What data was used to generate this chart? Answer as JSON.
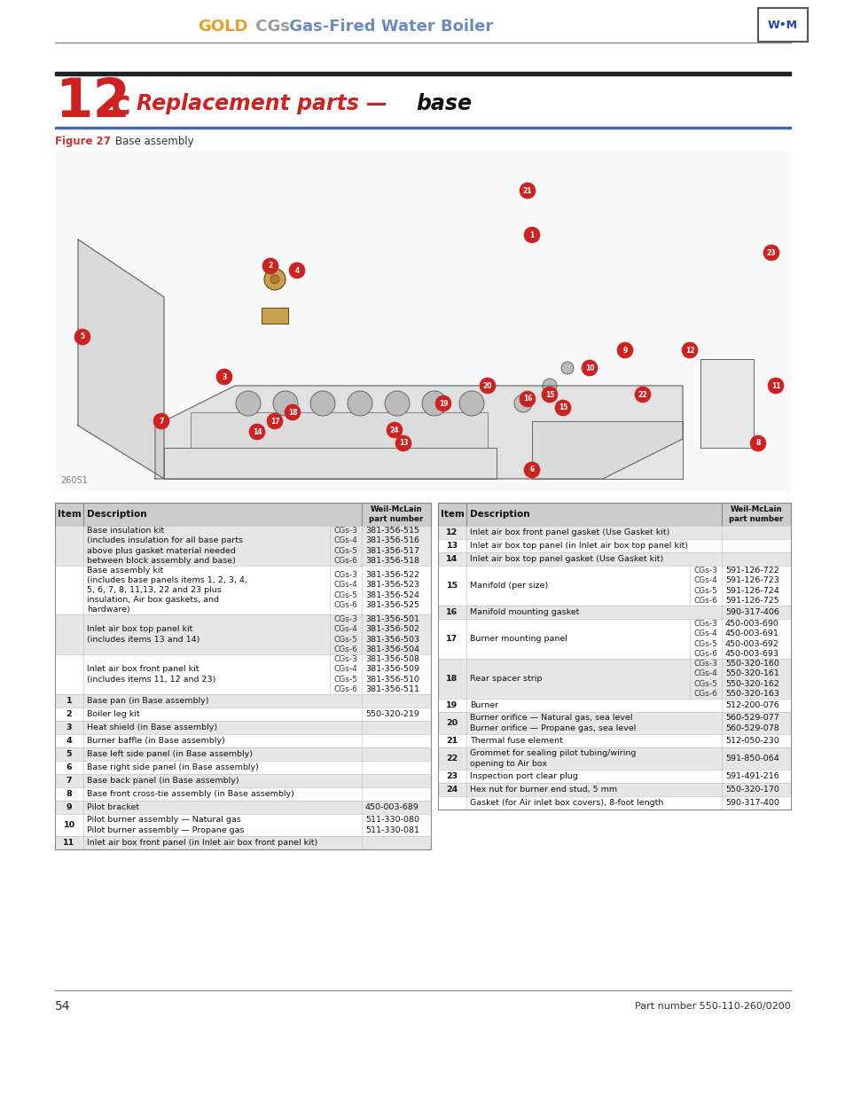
{
  "page_bg": "#ffffff",
  "gold_color": "#E8A020",
  "blue_color": "#6B8CBE",
  "section_red": "#CC2222",
  "dark_gray": "#333333",
  "page_number": "54",
  "part_number_footer": "Part number 550-110-260/0200",
  "header_line_color": "#888888",
  "section_line_color": "#222222",
  "figure_line_color": "#4466AA",
  "table_header_bg": "#cccccc",
  "table_border": "#888888",
  "table_row_alt": "#e8e8e8",
  "table_row_normal": "#ffffff",
  "table1_rows": [
    [
      "",
      "Base insulation kit\n(includes insulation for all base parts\nabove plus gasket material needed\nbetween block assembly and base)",
      "CGs-3\nCGs-4\nCGs-5\nCGs-6",
      "381-356-515\n381-356-516\n381-356-517\n381-356-518"
    ],
    [
      "",
      "Base assembly kit\n(includes base panels items 1, 2, 3, 4,\n5, 6, 7, 8, 11,13, 22 and 23 plus\ninsulation, Air box gaskets, and\nhardware)",
      "CGs-3\nCGs-4\nCGs-5\nCGs-6",
      "381-356-522\n381-356-523\n381-356-524\n381-356-525"
    ],
    [
      "",
      "Inlet air box top panel kit\n(includes items 13 and 14)",
      "CGs-3\nCGs-4\nCGs-5\nCGs-6",
      "381-356-501\n381-356-502\n381-356-503\n381-356-504"
    ],
    [
      "",
      "Inlet air box front panel kit\n(includes items 11, 12 and 23)",
      "CGs-3\nCGs-4\nCGs-5\nCGs-6",
      "381-356-508\n381-356-509\n381-356-510\n381-356-511"
    ],
    [
      "1",
      "Base pan (in Base assembly)",
      "",
      ""
    ],
    [
      "2",
      "Boiler leg kit",
      "",
      "550-320-219"
    ],
    [
      "3",
      "Heat shield (in Base assembly)",
      "",
      ""
    ],
    [
      "4",
      "Burner baffle (in Base assembly)",
      "",
      ""
    ],
    [
      "5",
      "Base left side panel (in Base assembly)",
      "",
      ""
    ],
    [
      "6",
      "Base right side panel (in Base assembly)",
      "",
      ""
    ],
    [
      "7",
      "Base back panel (in Base assembly)",
      "",
      ""
    ],
    [
      "8",
      "Base front cross-tie assembly (in Base assembly)",
      "",
      ""
    ],
    [
      "9",
      "Pilot bracket",
      "",
      "450-003-689"
    ],
    [
      "10",
      "Pilot burner assembly — Natural gas\nPilot burner assembly — Propane gas",
      "",
      "511-330-080\n511-330-081"
    ],
    [
      "11",
      "Inlet air box front panel (in Inlet air box front panel kit)",
      "",
      ""
    ]
  ],
  "table2_rows": [
    [
      "12",
      "Inlet air box front panel gasket (Use Gasket kit)",
      "",
      ""
    ],
    [
      "13",
      "Inlet air box top panel (in Inlet air box top panel kit)",
      "",
      ""
    ],
    [
      "14",
      "Inlet air box top panel gasket (Use Gasket kit)",
      "",
      ""
    ],
    [
      "15",
      "Manifold (per size)",
      "CGs-3\nCGs-4\nCGs-5\nCGs-6",
      "591-126-722\n591-126-723\n591-126-724\n591-126-725"
    ],
    [
      "16",
      "Manifold mounting gasket",
      "",
      "590-317-406"
    ],
    [
      "17",
      "Burner mounting panel",
      "CGs-3\nCGs-4\nCGs-5\nCGs-6",
      "450-003-690\n450-003-691\n450-003-692\n450-003-693"
    ],
    [
      "18",
      "Rear spacer strip",
      "CGs-3\nCGs-4\nCGs-5\nCGs-6",
      "550-320-160\n550-320-161\n550-320-162\n550-320-163"
    ],
    [
      "19",
      "Burner",
      "",
      "512-200-076"
    ],
    [
      "20",
      "Burner orifice — Natural gas, sea level\nBurner orifice — Propane gas, sea level",
      "",
      "560-529-077\n560-529-078"
    ],
    [
      "21",
      "Thermal fuse element",
      "",
      "512-050-230"
    ],
    [
      "22",
      "Grommet for sealing pilot tubing/wiring\nopening to Air box",
      "",
      "591-850-064"
    ],
    [
      "23",
      "Inspection port clear plug",
      "",
      "591-491-216"
    ],
    [
      "24",
      "Hex nut for burner end stud, 5 mm",
      "",
      "550-320-170"
    ],
    [
      "",
      "Gasket (for Air inlet box covers), 8-foot length",
      "",
      "590-317-400"
    ]
  ]
}
